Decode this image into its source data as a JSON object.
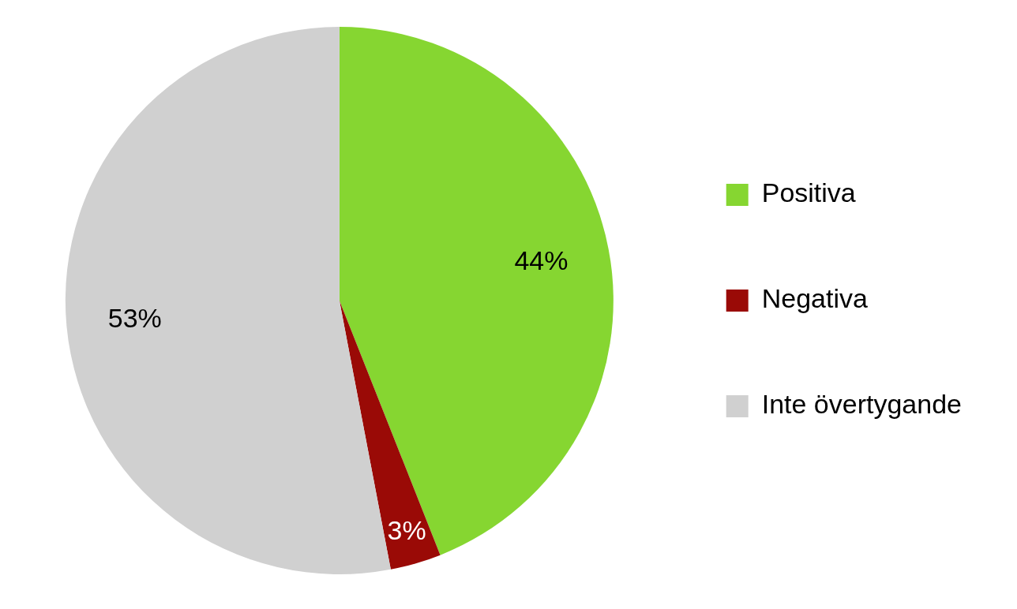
{
  "chart_data": {
    "type": "pie",
    "categories": [
      "Positiva",
      "Negativa",
      "Inte övertygande"
    ],
    "values": [
      44,
      3,
      53
    ],
    "colors": [
      "#86d631",
      "#9a0a06",
      "#d0d0d0"
    ],
    "value_labels": [
      "44%",
      "3%",
      "53%"
    ],
    "legend": "right"
  }
}
